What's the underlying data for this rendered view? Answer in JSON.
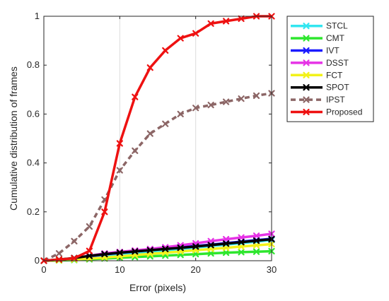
{
  "chart_data": {
    "type": "line",
    "xlabel": "Error (pixels)",
    "ylabel": "Cumulative distribution of frames",
    "xlim": [
      0,
      30
    ],
    "ylim": [
      0,
      1
    ],
    "x_ticks": [
      0,
      10,
      20,
      30
    ],
    "y_ticks": [
      0,
      0.2,
      0.4,
      0.6,
      0.8,
      1
    ],
    "x_tick_labels": [
      "0",
      "10",
      "20",
      "30"
    ],
    "y_tick_labels": [
      "0",
      "0.2",
      "0.4",
      "0.6",
      "0.8",
      "1"
    ],
    "grid": "vertical",
    "legend_position": "top-right outside",
    "x": [
      0,
      2,
      4,
      6,
      8,
      10,
      12,
      14,
      16,
      18,
      20,
      22,
      24,
      26,
      28,
      30
    ],
    "series": [
      {
        "name": "STCL",
        "color": "#33e6f0",
        "dash": "solid",
        "marker": "x",
        "values": [
          0,
          0.003,
          0.007,
          0.012,
          0.018,
          0.024,
          0.03,
          0.036,
          0.042,
          0.048,
          0.054,
          0.06,
          0.066,
          0.072,
          0.078,
          0.085
        ]
      },
      {
        "name": "CMT",
        "color": "#2ee62e",
        "dash": "solid",
        "marker": "x",
        "values": [
          0,
          0.001,
          0.003,
          0.006,
          0.009,
          0.012,
          0.015,
          0.018,
          0.021,
          0.024,
          0.027,
          0.03,
          0.033,
          0.035,
          0.037,
          0.039
        ]
      },
      {
        "name": "IVT",
        "color": "#1a1aff",
        "dash": "solid",
        "marker": "x",
        "values": [
          0,
          0.004,
          0.01,
          0.018,
          0.026,
          0.032,
          0.038,
          0.044,
          0.05,
          0.055,
          0.06,
          0.066,
          0.072,
          0.078,
          0.084,
          0.09
        ]
      },
      {
        "name": "DSST",
        "color": "#e633e6",
        "dash": "solid",
        "marker": "x",
        "values": [
          0,
          0.004,
          0.01,
          0.02,
          0.03,
          0.036,
          0.042,
          0.048,
          0.055,
          0.063,
          0.071,
          0.08,
          0.088,
          0.095,
          0.102,
          0.11
        ]
      },
      {
        "name": "FCT",
        "color": "#f2f21a",
        "dash": "solid",
        "marker": "x",
        "values": [
          0,
          0.002,
          0.005,
          0.009,
          0.013,
          0.018,
          0.023,
          0.028,
          0.033,
          0.038,
          0.043,
          0.048,
          0.053,
          0.058,
          0.063,
          0.068
        ]
      },
      {
        "name": "SPOT",
        "color": "#000000",
        "dash": "solid",
        "marker": "x",
        "values": [
          0,
          0.005,
          0.011,
          0.02,
          0.027,
          0.033,
          0.038,
          0.043,
          0.048,
          0.053,
          0.058,
          0.064,
          0.07,
          0.076,
          0.082,
          0.088
        ]
      },
      {
        "name": "IPST",
        "color": "#8c6666",
        "dash": "dashed",
        "marker": "x",
        "values": [
          0,
          0.03,
          0.08,
          0.14,
          0.25,
          0.37,
          0.45,
          0.52,
          0.56,
          0.6,
          0.625,
          0.637,
          0.65,
          0.663,
          0.675,
          0.685
        ]
      },
      {
        "name": "Proposed",
        "color": "#ee1111",
        "dash": "solid",
        "marker": "x",
        "values": [
          0,
          0.005,
          0.01,
          0.04,
          0.2,
          0.48,
          0.67,
          0.79,
          0.86,
          0.91,
          0.93,
          0.97,
          0.98,
          0.99,
          1.0,
          1.0
        ]
      }
    ]
  }
}
